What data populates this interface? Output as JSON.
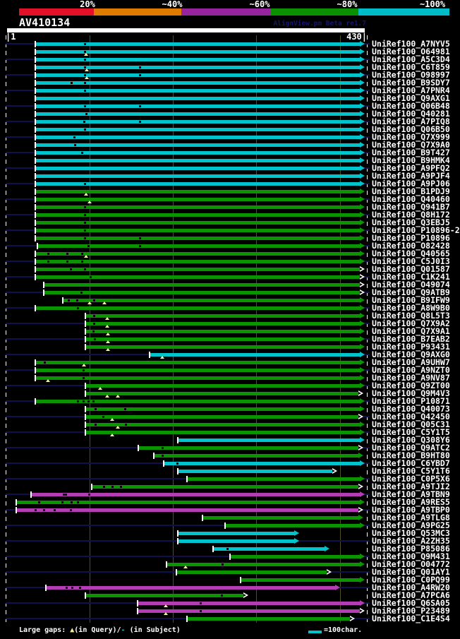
{
  "header": {
    "identity_scale": [
      {
        "label": "20%",
        "color": "#e31128"
      },
      {
        "label": "~40%",
        "color": "#df7c00"
      },
      {
        "label": "~60%",
        "color": "#96249e"
      },
      {
        "label": "~80%",
        "color": "#0a9000"
      },
      {
        "label": "~100%",
        "color": "#00bcc8"
      }
    ],
    "query_id": "AV410134",
    "watermark": "AlignView.pm Beta re1.7",
    "ruler": {
      "start_label": "|1",
      "end_label": "430|"
    }
  },
  "footer": {
    "gaps_text_prefix": "Large gaps: ",
    "gaps_triangle": "▲",
    "gaps_text_mid": "(in Query)/",
    "gaps_dash": "-",
    "gaps_text_suffix": " (in Subject)",
    "scalebar_label": "=100char."
  },
  "palette": {
    "cyan": "#00c4cc",
    "green": "#0a9400",
    "magenta": "#b63cb6",
    "navy": "#10104e",
    "navy_text": "#14147a",
    "grid": "#4f4f26",
    "gap_marker": "#f5f1a0"
  },
  "chart_data": {
    "type": "bar",
    "title": "AV410134",
    "x_range": [
      1,
      430
    ],
    "gridlines": [
      100,
      200,
      300,
      400
    ],
    "color_meaning": {
      "cyan": "~100% identity",
      "green": "~80% identity",
      "magenta": "~60% identity"
    },
    "hits": [
      {
        "label": "UniRef100_A7NYV5",
        "color": "cyan",
        "start": 36,
        "end": 430,
        "subject_gaps": [
          94
        ]
      },
      {
        "label": "UniRef100_O64981",
        "color": "cyan",
        "start": 36,
        "end": 430,
        "subject_gaps": [
          94
        ],
        "query_gaps": [
          96
        ]
      },
      {
        "label": "UniRef100_A5C3D4",
        "color": "cyan",
        "start": 36,
        "end": 430,
        "subject_gaps": [
          94
        ]
      },
      {
        "label": "UniRef100_C6T859",
        "color": "cyan",
        "start": 36,
        "end": 430,
        "subject_gaps": [
          94,
          160
        ],
        "query_gaps": [
          97
        ]
      },
      {
        "label": "UniRef100_O98997",
        "color": "cyan",
        "start": 36,
        "end": 430,
        "subject_gaps": [
          94,
          160
        ],
        "query_gaps": [
          97
        ]
      },
      {
        "label": "UniRef100_B9SDY7",
        "color": "cyan",
        "start": 36,
        "end": 430,
        "subject_gaps": [
          78,
          94
        ]
      },
      {
        "label": "UniRef100_A7PNR4",
        "color": "cyan",
        "start": 36,
        "end": 430,
        "subject_gaps": [
          94
        ]
      },
      {
        "label": "UniRef100_Q9AXG1",
        "color": "cyan",
        "start": 36,
        "end": 430
      },
      {
        "label": "UniRef100_Q06B48",
        "color": "cyan",
        "start": 36,
        "end": 430,
        "subject_gaps": [
          94,
          160
        ]
      },
      {
        "label": "UniRef100_Q40281",
        "color": "cyan",
        "start": 36,
        "end": 430,
        "subject_gaps": [
          96
        ]
      },
      {
        "label": "UniRef100_A7PIQ8",
        "color": "cyan",
        "start": 36,
        "end": 430,
        "subject_gaps": [
          93,
          160
        ]
      },
      {
        "label": "UniRef100_Q06B50",
        "color": "cyan",
        "start": 36,
        "end": 430,
        "subject_gaps": [
          94
        ]
      },
      {
        "label": "UniRef100_Q7X999",
        "color": "cyan",
        "start": 36,
        "end": 430,
        "subject_gaps": [
          81
        ]
      },
      {
        "label": "UniRef100_Q7X9A0",
        "color": "cyan",
        "start": 36,
        "end": 430,
        "subject_gaps": [
          82
        ]
      },
      {
        "label": "UniRef100_B9T427",
        "color": "cyan",
        "start": 36,
        "end": 430,
        "subject_gaps": [
          91
        ]
      },
      {
        "label": "UniRef100_B9HMK4",
        "color": "cyan",
        "start": 36,
        "end": 430
      },
      {
        "label": "UniRef100_A9PFQ2",
        "color": "cyan",
        "start": 36,
        "end": 430
      },
      {
        "label": "UniRef100_A9PJF4",
        "color": "cyan",
        "start": 36,
        "end": 430
      },
      {
        "label": "UniRef100_A9PJ06",
        "color": "cyan",
        "start": 36,
        "end": 430,
        "subject_gaps": [
          94
        ]
      },
      {
        "label": "UniRef100_B1PDJ9",
        "color": "green",
        "start": 36,
        "end": 430,
        "query_gaps": [
          96
        ]
      },
      {
        "label": "UniRef100_Q40460",
        "color": "green",
        "start": 36,
        "end": 430,
        "query_gaps": [
          100
        ]
      },
      {
        "label": "UniRef100_Q941B7",
        "color": "green",
        "start": 36,
        "end": 430,
        "subject_gaps": [
          94
        ]
      },
      {
        "label": "UniRef100_Q8H172",
        "color": "green",
        "start": 36,
        "end": 430,
        "subject_gaps": [
          94
        ]
      },
      {
        "label": "UniRef100_Q3EBJ5",
        "color": "green",
        "start": 36,
        "end": 430,
        "subject_gaps": [
          94
        ]
      },
      {
        "label": "UniRef100_P10896-2",
        "color": "green",
        "start": 36,
        "end": 430,
        "subject_gaps": [
          94
        ]
      },
      {
        "label": "UniRef100_P10896",
        "color": "green",
        "start": 36,
        "end": 430,
        "subject_gaps": [
          94,
          160
        ]
      },
      {
        "label": "UniRef100_O82428",
        "color": "green",
        "start": 38,
        "end": 430,
        "subject_gaps": [
          98,
          160
        ]
      },
      {
        "label": "UniRef100_Q40565",
        "color": "green",
        "start": 36,
        "end": 430,
        "subject_gaps": [
          50,
          73,
          91
        ],
        "query_gaps": [
          96
        ]
      },
      {
        "label": "UniRef100_C5J0I3",
        "color": "green",
        "start": 36,
        "end": 430,
        "subject_gaps": [
          50,
          73,
          91
        ]
      },
      {
        "label": "UniRef100_Q01587",
        "color": "green",
        "start": 36,
        "end": 430,
        "arrow": "hollow",
        "subject_gaps": [
          77,
          94
        ]
      },
      {
        "label": "UniRef100_C1K241",
        "color": "green",
        "start": 36,
        "end": 430,
        "arrow": "hollow",
        "subject_gaps": [
          101
        ]
      },
      {
        "label": "UniRef100_O49074",
        "color": "green",
        "start": 46,
        "end": 430,
        "arrow": "hollow"
      },
      {
        "label": "UniRef100_Q9ATB9",
        "color": "green",
        "start": 46,
        "end": 430,
        "arrow": "hollow",
        "subject_gaps": [
          90
        ]
      },
      {
        "label": "UniRef100_B9IFW9",
        "color": "green",
        "start": 69,
        "end": 430,
        "subject_gaps": [
          75,
          85,
          105
        ],
        "query_gaps": [
          100,
          118
        ]
      },
      {
        "label": "UniRef100_A8W9B0",
        "color": "green",
        "start": 36,
        "end": 430,
        "subject_gaps": [
          86
        ]
      },
      {
        "label": "UniRef100_Q8L5T3",
        "color": "green",
        "start": 96,
        "end": 430,
        "subject_gaps": [
          105
        ],
        "query_gaps": [
          121
        ]
      },
      {
        "label": "UniRef100_Q7X9A2",
        "color": "green",
        "start": 96,
        "end": 430,
        "subject_gaps": [
          105
        ],
        "query_gaps": [
          121
        ]
      },
      {
        "label": "UniRef100_Q7X9A1",
        "color": "green",
        "start": 96,
        "end": 430,
        "subject_gaps": [
          104
        ],
        "query_gaps": [
          122
        ]
      },
      {
        "label": "UniRef100_B7EAB2",
        "color": "green",
        "start": 96,
        "end": 430,
        "subject_gaps": [
          106
        ],
        "query_gaps": [
          122
        ]
      },
      {
        "label": "UniRef100_P93431",
        "color": "green",
        "start": 96,
        "end": 430,
        "query_gaps": [
          122
        ]
      },
      {
        "label": "UniRef100_Q9AXG0",
        "color": "cyan",
        "start": 173,
        "end": 430,
        "query_gaps": [
          187
        ]
      },
      {
        "label": "UniRef100_A9UHW7",
        "color": "green",
        "start": 36,
        "end": 430,
        "subject_gaps": [
          46
        ],
        "query_gaps": [
          93
        ]
      },
      {
        "label": "UniRef100_A9NZT0",
        "color": "green",
        "start": 36,
        "end": 430,
        "subject_gaps": [
          92
        ]
      },
      {
        "label": "UniRef100_A9NV87",
        "color": "green",
        "start": 36,
        "end": 430,
        "subject_gaps": [
          92
        ],
        "query_gaps": [
          50
        ]
      },
      {
        "label": "UniRef100_Q9ZT00",
        "color": "green",
        "start": 96,
        "end": 430,
        "query_gaps": [
          113
        ]
      },
      {
        "label": "UniRef100_Q9M4V3",
        "color": "green",
        "start": 96,
        "end": 428,
        "arrow": "hollow",
        "query_gaps": [
          121,
          134
        ]
      },
      {
        "label": "UniRef100_P10871",
        "color": "green",
        "start": 36,
        "end": 430,
        "subject_gaps": [
          86,
          92,
          98,
          104
        ]
      },
      {
        "label": "UniRef100_Q40073",
        "color": "green",
        "start": 96,
        "end": 430,
        "subject_gaps": [
          107,
          142
        ]
      },
      {
        "label": "UniRef100_Q42450",
        "color": "green",
        "start": 96,
        "end": 428,
        "arrow": "hollow",
        "subject_gaps": [
          116
        ],
        "query_gaps": [
          127
        ]
      },
      {
        "label": "UniRef100_Q05C31",
        "color": "green",
        "start": 96,
        "end": 430,
        "subject_gaps": [
          107,
          143
        ],
        "query_gaps": [
          134
        ]
      },
      {
        "label": "UniRef100_C5Y1T5",
        "color": "green",
        "start": 96,
        "end": 430,
        "query_gaps": [
          127
        ]
      },
      {
        "label": "UniRef100_Q308Y6",
        "color": "cyan",
        "start": 207,
        "end": 430
      },
      {
        "label": "UniRef100_Q9ATC2",
        "color": "green",
        "start": 159,
        "end": 428,
        "arrow": "hollow",
        "subject_gaps": [
          187
        ]
      },
      {
        "label": "UniRef100_B9HT80",
        "color": "green",
        "start": 178,
        "end": 428,
        "subject_gaps": [
          187
        ]
      },
      {
        "label": "UniRef100_C6YBD7",
        "color": "cyan",
        "start": 190,
        "end": 430,
        "subject_gaps": [
          205
        ]
      },
      {
        "label": "UniRef100_C5Y1T6",
        "color": "cyan",
        "start": 207,
        "end": 397,
        "arrow": "hollow"
      },
      {
        "label": "UniRef100_C0P5X6",
        "color": "green",
        "start": 218,
        "end": 430
      },
      {
        "label": "UniRef100_A9TJI2",
        "color": "green",
        "start": 103,
        "end": 428,
        "arrow": "hollow",
        "subject_gaps": [
          117,
          127,
          137
        ]
      },
      {
        "label": "UniRef100_A9TBN9",
        "color": "magenta",
        "start": 31,
        "end": 430,
        "subject_gaps": [
          69,
          71,
          99
        ]
      },
      {
        "label": "UniRef100_A9RES5",
        "color": "green",
        "start": 13,
        "end": 430,
        "subject_gaps": [
          39,
          67,
          78,
          86
        ]
      },
      {
        "label": "UniRef100_A9TBP0",
        "color": "magenta",
        "start": 13,
        "end": 428,
        "arrow": "hollow",
        "subject_gaps": [
          35,
          45,
          58,
          77
        ]
      },
      {
        "label": "UniRef100_A9TLG8",
        "color": "green",
        "start": 236,
        "end": 428
      },
      {
        "label": "UniRef100_A9PG25",
        "color": "green",
        "start": 263,
        "end": 430
      },
      {
        "label": "UniRef100_Q53MC3",
        "color": "cyan",
        "start": 207,
        "end": 351
      },
      {
        "label": "UniRef100_A2ZH35",
        "color": "cyan",
        "start": 207,
        "end": 351
      },
      {
        "label": "UniRef100_P85086",
        "color": "cyan",
        "start": 249,
        "end": 388,
        "subject_gaps": [
          265
        ]
      },
      {
        "label": "UniRef100_Q9M431",
        "color": "green",
        "start": 269,
        "end": 430
      },
      {
        "label": "UniRef100_O04772",
        "color": "green",
        "start": 193,
        "end": 430,
        "subject_gaps": [
          259
        ],
        "query_gaps": [
          215
        ]
      },
      {
        "label": "UniRef100_Q01AY1",
        "color": "green",
        "start": 205,
        "end": 390,
        "arrow": "hollow"
      },
      {
        "label": "UniRef100_C0PQ99",
        "color": "green",
        "start": 282,
        "end": 430
      },
      {
        "label": "UniRef100_A4RW20",
        "color": "magenta",
        "start": 48,
        "end": 400,
        "subject_gaps": [
          72,
          79,
          88
        ]
      },
      {
        "label": "UniRef100_A7PCA6",
        "color": "green",
        "start": 96,
        "end": 290,
        "arrow": "hollow",
        "subject_gaps": [
          258
        ]
      },
      {
        "label": "UniRef100_Q6SA05",
        "color": "magenta",
        "start": 158,
        "end": 430,
        "subject_gaps": [
          233
        ],
        "query_gaps": [
          191
        ]
      },
      {
        "label": "UniRef100_P23489",
        "color": "magenta",
        "start": 158,
        "end": 430,
        "arrow": "hollow",
        "subject_gaps": [
          233
        ],
        "query_gaps": [
          191
        ]
      },
      {
        "label": "UniRef100_C1E4S4",
        "color": "green",
        "start": 218,
        "end": 418,
        "arrow": "hollow"
      }
    ]
  }
}
